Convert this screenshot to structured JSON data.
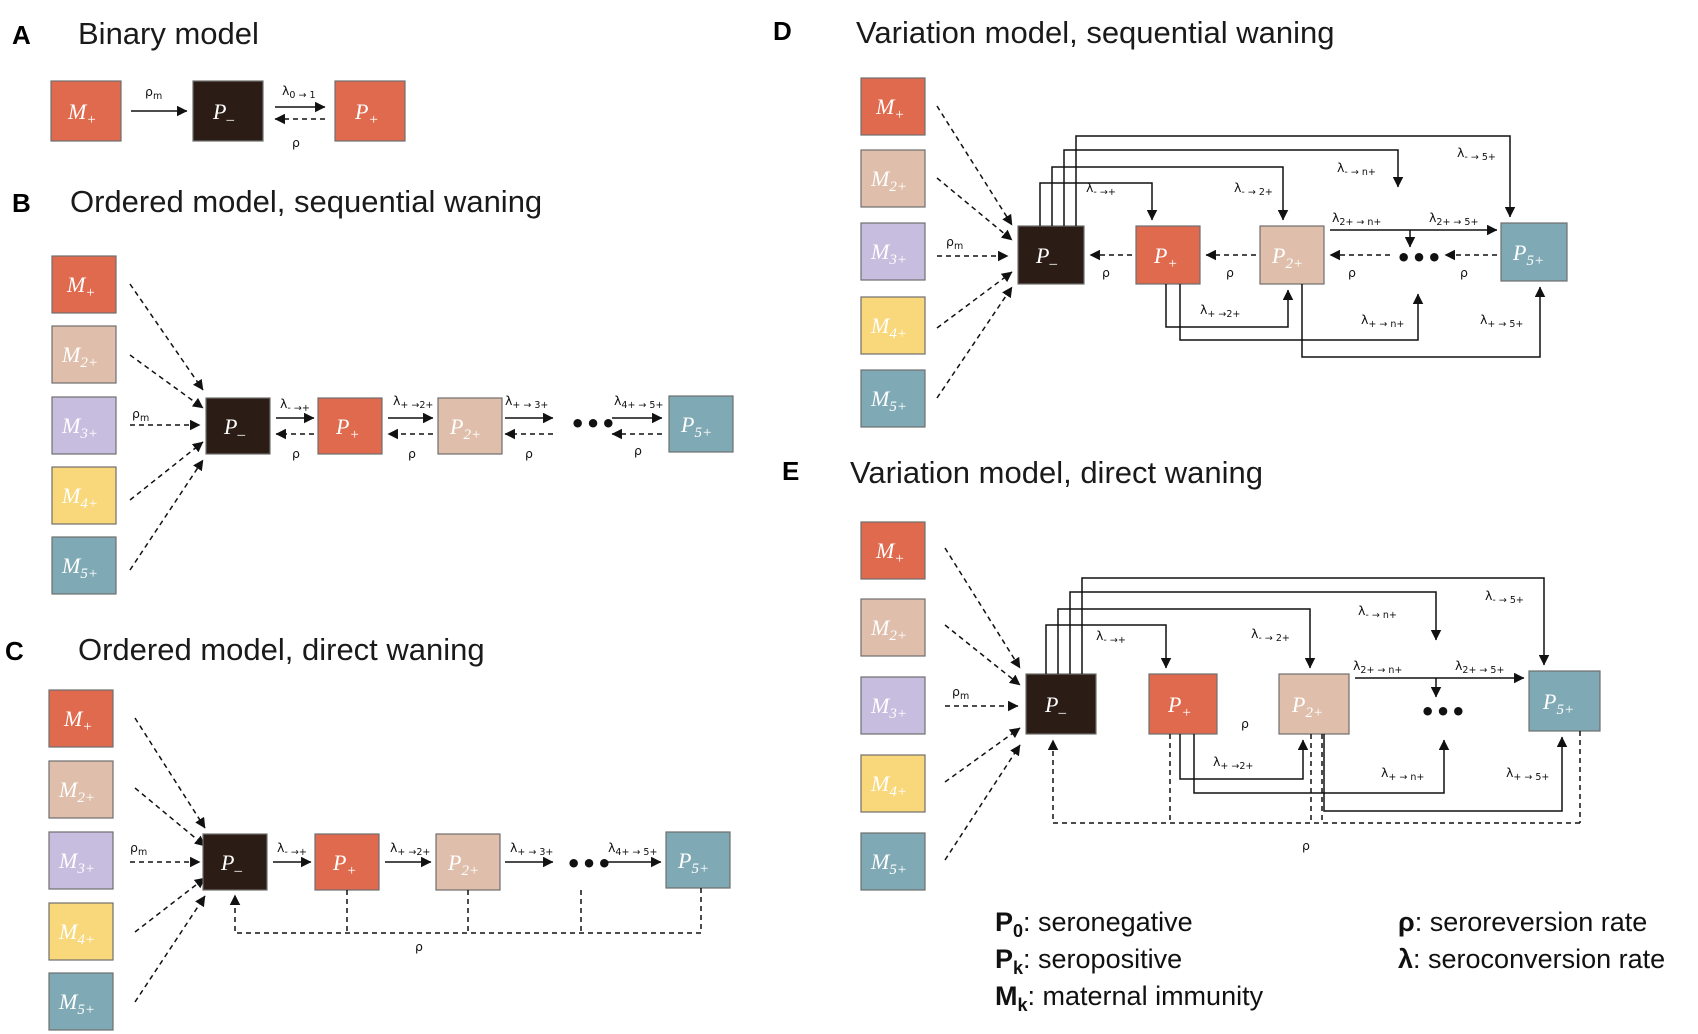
{
  "colors": {
    "P_minus": "#2b1d16",
    "P1": "#e06a4e",
    "P2": "#dfbfab",
    "M3": "#c7bddf",
    "M4": "#f8d87a",
    "P5": "#7fa9b5"
  },
  "panels": {
    "A": {
      "letter": "A",
      "title": "Binary model"
    },
    "B": {
      "letter": "B",
      "title": "Ordered model, sequential waning"
    },
    "C": {
      "letter": "C",
      "title": "Ordered model, direct waning"
    },
    "D": {
      "letter": "D",
      "title": "Variation model, sequential waning"
    },
    "E": {
      "letter": "E",
      "title": "Variation model, direct waning"
    }
  },
  "nodes": {
    "P_minus": {
      "main": "P",
      "sub": "–"
    },
    "P_plus": {
      "main": "P",
      "sub": "+"
    },
    "P_2plus": {
      "main": "P",
      "sub": "2+"
    },
    "P_5plus": {
      "main": "P",
      "sub": "5+"
    },
    "M_plus": {
      "main": "M",
      "sub": "+"
    },
    "M_2plus": {
      "main": "M",
      "sub": "2+"
    },
    "M_3plus": {
      "main": "M",
      "sub": "3+"
    },
    "M_4plus": {
      "main": "M",
      "sub": "4+"
    },
    "M_5plus": {
      "main": "M",
      "sub": "5+"
    }
  },
  "rates": {
    "rho": "ρ",
    "rho_m": {
      "main": "ρ",
      "sub": "m"
    },
    "l_0_1": {
      "main": "λ",
      "sub": "0 → 1"
    },
    "l_m_p": {
      "main": "λ",
      "sub": "- →+"
    },
    "l_p_2p": {
      "main": "λ",
      "sub": "+ →2+"
    },
    "l_p_3p": {
      "main": "λ",
      "sub": "+ → 3+"
    },
    "l_4p_5p": {
      "main": "λ",
      "sub": "4+ → 5+"
    },
    "l_m_2p": {
      "main": "λ",
      "sub": "- → 2+"
    },
    "l_m_np": {
      "main": "λ",
      "sub": "- → n+"
    },
    "l_m_5p": {
      "main": "λ",
      "sub": "- → 5+"
    },
    "l_2p_np": {
      "main": "λ",
      "sub": "2+ → n+"
    },
    "l_2p_5p": {
      "main": "λ",
      "sub": "2+ → 5+"
    },
    "l_p_np": {
      "main": "λ",
      "sub": "+ → n+"
    },
    "l_p_5p": {
      "main": "λ",
      "sub": "+ → 5+"
    }
  },
  "dots": "•••",
  "legend": [
    {
      "key": "P",
      "sub": "0",
      "text": ": seronegative"
    },
    {
      "key": "P",
      "sub": "k",
      "text": ": seropositive"
    },
    {
      "key": "M",
      "sub": "k",
      "text": ": maternal immunity"
    },
    {
      "key": "ρ",
      "sub": "",
      "text": ": seroreversion rate"
    },
    {
      "key": "λ",
      "sub": "",
      "text": ": seroconversion rate"
    }
  ]
}
